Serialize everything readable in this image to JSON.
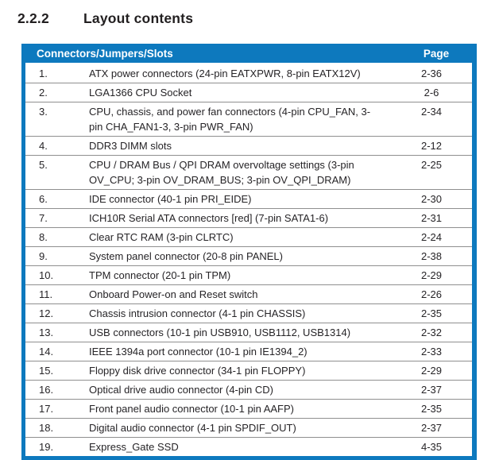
{
  "section": {
    "number": "2.2.2",
    "title": "Layout contents"
  },
  "table": {
    "headers": {
      "items": "Connectors/Jumpers/Slots",
      "page": "Page"
    },
    "rows": [
      {
        "num": "1.",
        "desc": "ATX power connectors (24-pin EATXPWR, 8-pin EATX12V)",
        "page": "2-36"
      },
      {
        "num": "2.",
        "desc": "LGA1366 CPU Socket",
        "page": "2-6"
      },
      {
        "num": "3.",
        "desc": "CPU, chassis, and power fan connectors (4-pin CPU_FAN, 3-pin CHA_FAN1-3, 3-pin PWR_FAN)",
        "page": "2-34"
      },
      {
        "num": "4.",
        "desc": "DDR3 DIMM slots",
        "page": "2-12"
      },
      {
        "num": "5.",
        "desc": "CPU / DRAM Bus / QPI DRAM overvoltage settings (3-pin OV_CPU; 3-pin OV_DRAM_BUS; 3-pin OV_QPI_DRAM)",
        "page": "2-25"
      },
      {
        "num": "6.",
        "desc": "IDE connector (40-1 pin PRI_EIDE)",
        "page": "2-30"
      },
      {
        "num": "7.",
        "desc": "ICH10R Serial ATA connectors [red] (7-pin SATA1-6)",
        "page": "2-31"
      },
      {
        "num": "8.",
        "desc": "Clear RTC RAM (3-pin CLRTC)",
        "page": "2-24"
      },
      {
        "num": "9.",
        "desc": "System panel connector (20-8 pin PANEL)",
        "page": "2-38"
      },
      {
        "num": "10.",
        "desc": "TPM connector (20-1 pin TPM)",
        "page": "2-29"
      },
      {
        "num": "11.",
        "desc": "Onboard Power-on and Reset switch",
        "page": "2-26"
      },
      {
        "num": "12.",
        "desc": "Chassis intrusion connector (4-1 pin CHASSIS)",
        "page": "2-35"
      },
      {
        "num": "13.",
        "desc": "USB connectors (10-1 pin USB910, USB1112, USB1314)",
        "page": "2-32"
      },
      {
        "num": "14.",
        "desc": "IEEE 1394a port connector (10-1 pin IE1394_2)",
        "page": "2-33"
      },
      {
        "num": "15.",
        "desc": "Floppy disk drive connector (34-1 pin FLOPPY)",
        "page": "2-29"
      },
      {
        "num": "16.",
        "desc": "Optical drive audio connector (4-pin CD)",
        "page": "2-37"
      },
      {
        "num": "17.",
        "desc": "Front panel audio connector (10-1 pin AAFP)",
        "page": "2-35"
      },
      {
        "num": "18.",
        "desc": "Digital audio connector (4-1 pin SPDIF_OUT)",
        "page": "2-37"
      },
      {
        "num": "19.",
        "desc": "Express_Gate SSD",
        "page": "4-35"
      }
    ]
  },
  "colors": {
    "accent_blue": "#0d79be",
    "divider_gray": "#8f8f8f",
    "text_dark": "#262427",
    "header_text": "#ffffff"
  }
}
